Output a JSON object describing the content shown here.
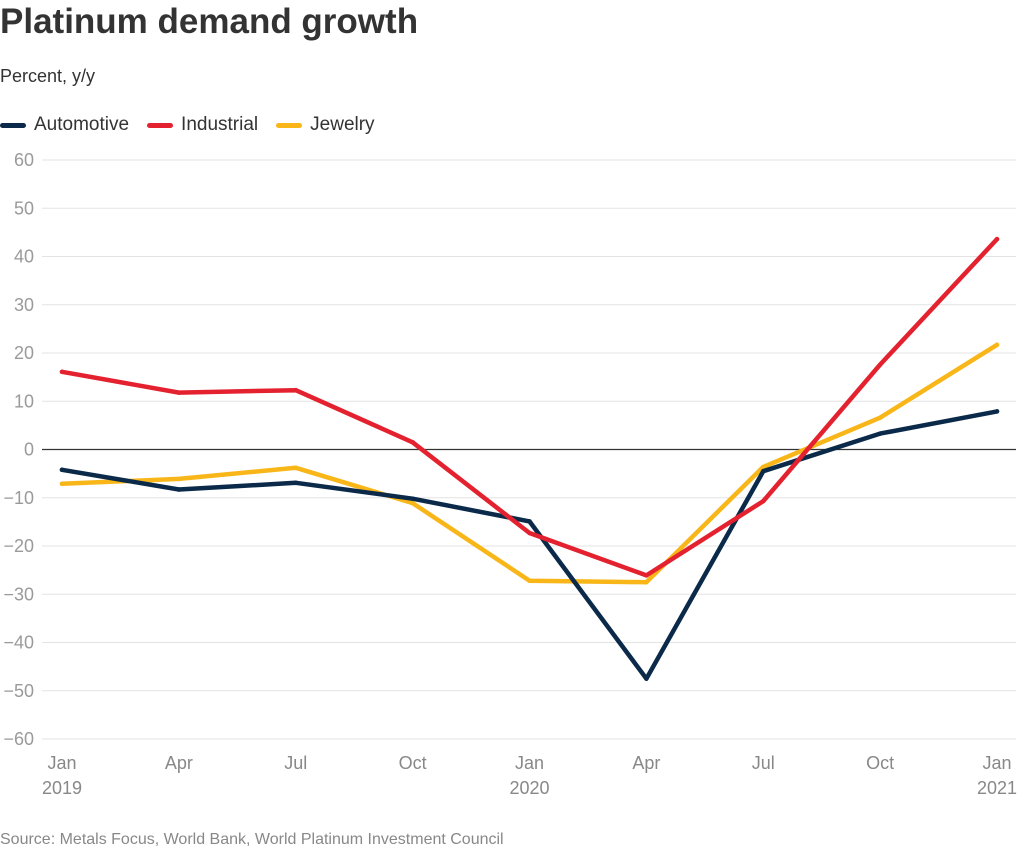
{
  "header": {
    "title": "Platinum demand growth",
    "subtitle": "Percent, y/y"
  },
  "footer": {
    "source": "Source: Metals Focus, World Bank, World Platinum Investment Council"
  },
  "colors": {
    "automotive": "#0b2a4a",
    "industrial": "#e4222f",
    "jewelry": "#f8b619",
    "grid": "#e3e3e3",
    "zero_line": "#333333"
  },
  "chart_data": {
    "type": "line",
    "title": "Platinum demand growth",
    "ylabel": "Percent, y/y",
    "xlabel": "",
    "ylim": [
      -60,
      60
    ],
    "y_ticks": [
      60,
      50,
      40,
      30,
      20,
      10,
      0,
      -10,
      -20,
      -30,
      -40,
      -50,
      -60
    ],
    "y_tick_labels": [
      "60",
      "50",
      "40",
      "30",
      "20",
      "10",
      "0",
      "−10",
      "−20",
      "−30",
      "−40",
      "−50",
      "−60"
    ],
    "x_dates": [
      "2019-01",
      "2019-04",
      "2019-07",
      "2019-10",
      "2020-01",
      "2020-04",
      "2020-07",
      "2020-10",
      "2021-01"
    ],
    "x_tick_labels": [
      {
        "month": "Jan",
        "year": "2019"
      },
      {
        "month": "Apr",
        "year": ""
      },
      {
        "month": "Jul",
        "year": ""
      },
      {
        "month": "Oct",
        "year": ""
      },
      {
        "month": "Jan",
        "year": "2020"
      },
      {
        "month": "Apr",
        "year": ""
      },
      {
        "month": "Jul",
        "year": ""
      },
      {
        "month": "Oct",
        "year": ""
      },
      {
        "month": "Jan",
        "year": "2021"
      }
    ],
    "grid": true,
    "legend_position": "top-left",
    "series": [
      {
        "name": "Automotive",
        "color": "#0b2a4a",
        "values": [
          -4.2,
          -8.3,
          -6.9,
          -10.2,
          -14.9,
          -47.5,
          -4.5,
          3.3,
          7.9
        ]
      },
      {
        "name": "Industrial",
        "color": "#e4222f",
        "values": [
          16.1,
          11.8,
          12.3,
          1.5,
          -17.3,
          -26.1,
          -10.7,
          17.6,
          43.6
        ]
      },
      {
        "name": "Jewelry",
        "color": "#f8b619",
        "values": [
          -7.1,
          -6.1,
          -3.8,
          -11.1,
          -27.2,
          -27.5,
          -3.6,
          6.6,
          21.7
        ]
      }
    ]
  }
}
